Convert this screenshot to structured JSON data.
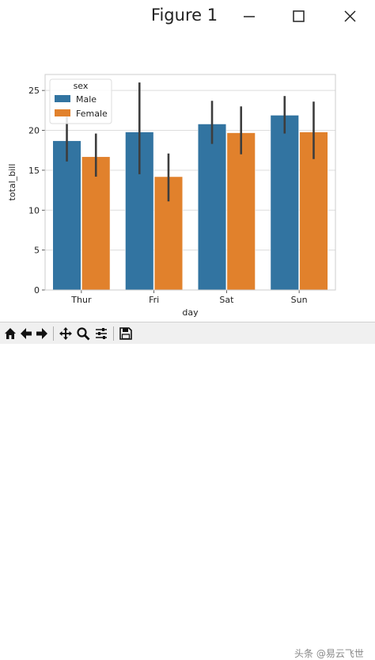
{
  "window": {
    "title": "Figure 1",
    "minimize_icon": "minimize-icon",
    "maximize_icon": "maximize-icon",
    "close_icon": "close-icon"
  },
  "toolbar": {
    "buttons": [
      {
        "name": "home-button",
        "icon": "home-icon"
      },
      {
        "name": "back-button",
        "icon": "arrow-left-icon"
      },
      {
        "name": "forward-button",
        "icon": "arrow-right-icon"
      },
      {
        "name": "pan-button",
        "icon": "move-icon"
      },
      {
        "name": "zoom-button",
        "icon": "magnifier-icon"
      },
      {
        "name": "configure-subplots-button",
        "icon": "sliders-icon"
      },
      {
        "name": "save-button",
        "icon": "floppy-disk-icon"
      }
    ]
  },
  "watermark": "头条 @易云飞世",
  "chart_data": {
    "type": "bar",
    "categories": [
      "Thur",
      "Fri",
      "Sat",
      "Sun"
    ],
    "series": [
      {
        "name": "Male",
        "color": "#3274a1",
        "values": [
          18.7,
          19.8,
          20.8,
          21.9
        ],
        "ci_low": [
          16.1,
          14.5,
          18.3,
          19.6
        ],
        "ci_high": [
          21.7,
          26.0,
          23.7,
          24.3
        ]
      },
      {
        "name": "Female",
        "color": "#e1812c",
        "values": [
          16.7,
          14.2,
          19.7,
          19.8
        ],
        "ci_low": [
          14.2,
          11.1,
          17.0,
          16.4
        ],
        "ci_high": [
          19.6,
          17.1,
          23.0,
          23.6
        ]
      }
    ],
    "xlabel": "day",
    "ylabel": "total_bill",
    "ylim": [
      0,
      27
    ],
    "yticks": [
      0,
      5,
      10,
      15,
      20,
      25
    ],
    "grid": "horizontal",
    "legend": {
      "title": "sex",
      "placement": "top-left"
    }
  }
}
